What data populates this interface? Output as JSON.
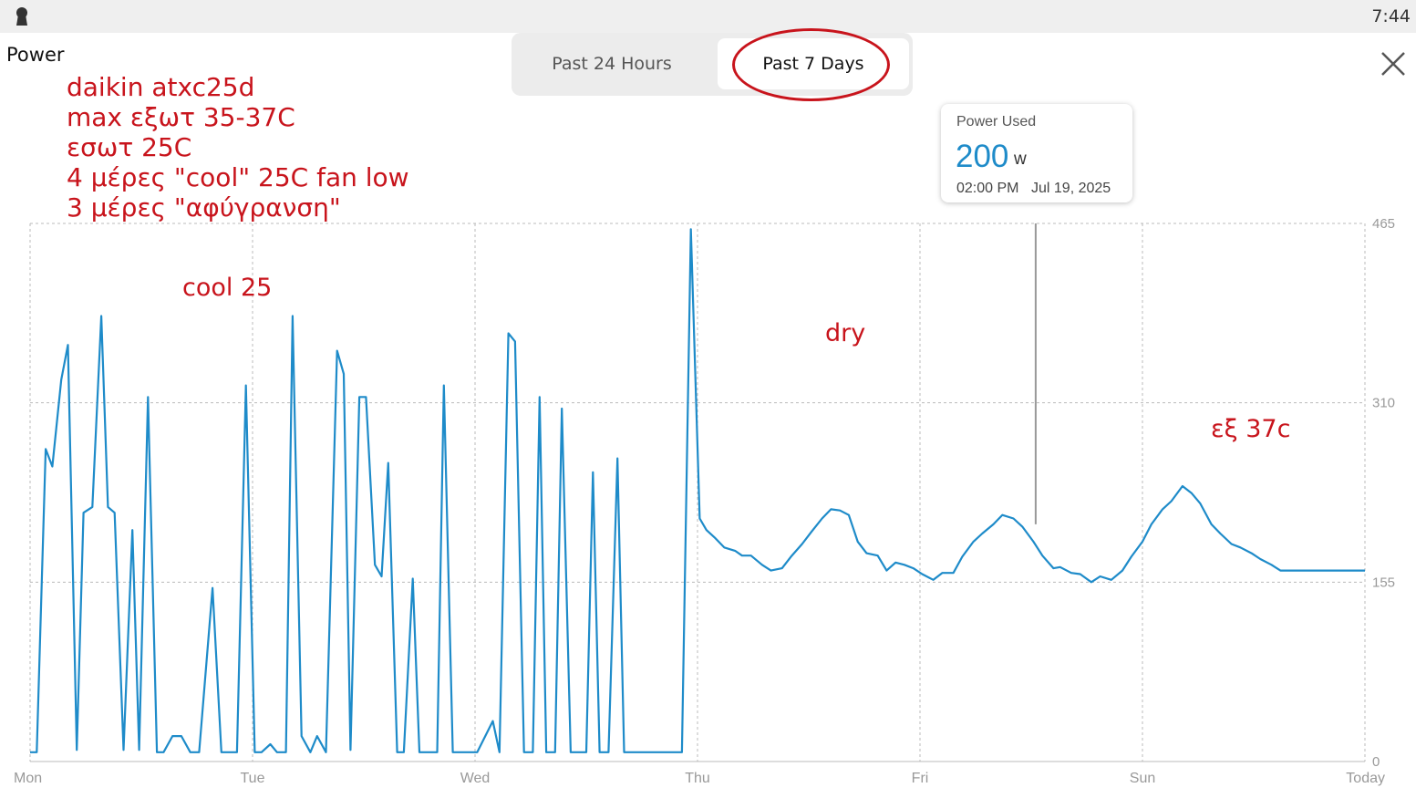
{
  "status_bar": {
    "time": "7:44",
    "icon": "keyhole-icon"
  },
  "header": {
    "title": "Power"
  },
  "tabs": [
    {
      "label": "Past 24 Hours",
      "selected": false
    },
    {
      "label": "Past 7 Days",
      "selected": true
    }
  ],
  "close_icon": "close-icon",
  "annotations": {
    "lines": [
      "daikin atxc25d",
      "max εξωτ 35-37C",
      "εσωτ 25C",
      "4 μέρες \"cool\" 25C fan low",
      "3 μέρες \"αφύγρανση\""
    ],
    "cool_label": "cool 25",
    "dry_label": "dry",
    "temp_label": "εξ 37c"
  },
  "tooltip": {
    "title": "Power Used",
    "value": "200",
    "unit": "w",
    "time": "02:00 PM",
    "date": "Jul 19, 2025"
  },
  "colors": {
    "line": "#1e8bc9",
    "annotation": "#c8141c",
    "grid": "#bbbbbb"
  },
  "chart_data": {
    "type": "line",
    "x_labels": [
      "Mon",
      "Tue",
      "Wed",
      "Thu",
      "Fri",
      "Sun",
      "Today"
    ],
    "x_label_days": [
      0,
      1,
      2,
      3,
      4,
      5,
      6
    ],
    "y_ticks": [
      "465",
      "310",
      "155",
      "0"
    ],
    "y_tick_values": [
      465,
      310,
      155,
      0
    ],
    "ylim": [
      0,
      465
    ],
    "xlim": [
      0,
      6
    ],
    "grid": true,
    "cursor_day": 4.52,
    "series": [
      {
        "values": [
          [
            0.0,
            8
          ],
          [
            0.03,
            8
          ],
          [
            0.07,
            270
          ],
          [
            0.1,
            255
          ],
          [
            0.14,
            330
          ],
          [
            0.17,
            360
          ],
          [
            0.21,
            10
          ],
          [
            0.24,
            215
          ],
          [
            0.28,
            220
          ],
          [
            0.32,
            385
          ],
          [
            0.35,
            220
          ],
          [
            0.38,
            215
          ],
          [
            0.42,
            10
          ],
          [
            0.46,
            200
          ],
          [
            0.49,
            10
          ],
          [
            0.53,
            315
          ],
          [
            0.57,
            8
          ],
          [
            0.6,
            8
          ],
          [
            0.64,
            22
          ],
          [
            0.68,
            22
          ],
          [
            0.72,
            8
          ],
          [
            0.76,
            8
          ],
          [
            0.82,
            150
          ],
          [
            0.86,
            8
          ],
          [
            0.9,
            8
          ],
          [
            0.93,
            8
          ],
          [
            0.97,
            325
          ],
          [
            1.01,
            8
          ],
          [
            1.04,
            8
          ],
          [
            1.08,
            15
          ],
          [
            1.11,
            8
          ],
          [
            1.15,
            8
          ],
          [
            1.18,
            385
          ],
          [
            1.22,
            22
          ],
          [
            1.26,
            8
          ],
          [
            1.29,
            22
          ],
          [
            1.33,
            8
          ],
          [
            1.38,
            355
          ],
          [
            1.41,
            335
          ],
          [
            1.44,
            10
          ],
          [
            1.48,
            315
          ],
          [
            1.51,
            315
          ],
          [
            1.55,
            170
          ],
          [
            1.58,
            160
          ],
          [
            1.61,
            258
          ],
          [
            1.65,
            8
          ],
          [
            1.68,
            8
          ],
          [
            1.72,
            158
          ],
          [
            1.75,
            8
          ],
          [
            1.79,
            8
          ],
          [
            1.83,
            8
          ],
          [
            1.86,
            325
          ],
          [
            1.9,
            8
          ],
          [
            1.93,
            8
          ],
          [
            2.01,
            8
          ],
          [
            2.08,
            35
          ],
          [
            2.11,
            8
          ],
          [
            2.15,
            370
          ],
          [
            2.18,
            363
          ],
          [
            2.22,
            8
          ],
          [
            2.26,
            8
          ],
          [
            2.29,
            315
          ],
          [
            2.32,
            8
          ],
          [
            2.36,
            8
          ],
          [
            2.39,
            305
          ],
          [
            2.43,
            8
          ],
          [
            2.46,
            8
          ],
          [
            2.5,
            8
          ],
          [
            2.53,
            250
          ],
          [
            2.56,
            8
          ],
          [
            2.6,
            8
          ],
          [
            2.64,
            262
          ],
          [
            2.67,
            8
          ],
          [
            2.7,
            8
          ],
          [
            2.85,
            8
          ],
          [
            2.93,
            8
          ],
          [
            2.97,
            460
          ],
          [
            3.01,
            210
          ],
          [
            3.04,
            200
          ],
          [
            3.08,
            193
          ],
          [
            3.12,
            185
          ],
          [
            3.17,
            182
          ],
          [
            3.2,
            178
          ],
          [
            3.24,
            178
          ],
          [
            3.29,
            170
          ],
          [
            3.33,
            165
          ],
          [
            3.38,
            167
          ],
          [
            3.42,
            177
          ],
          [
            3.47,
            188
          ],
          [
            3.51,
            198
          ],
          [
            3.56,
            210
          ],
          [
            3.6,
            218
          ],
          [
            3.64,
            217
          ],
          [
            3.68,
            213
          ],
          [
            3.72,
            190
          ],
          [
            3.76,
            180
          ],
          [
            3.81,
            178
          ],
          [
            3.85,
            165
          ],
          [
            3.89,
            172
          ],
          [
            3.93,
            170
          ],
          [
            3.97,
            167
          ],
          [
            4.01,
            162
          ],
          [
            4.06,
            157
          ],
          [
            4.1,
            163
          ],
          [
            4.15,
            163
          ],
          [
            4.19,
            177
          ],
          [
            4.24,
            190
          ],
          [
            4.28,
            197
          ],
          [
            4.33,
            205
          ],
          [
            4.37,
            213
          ],
          [
            4.42,
            210
          ],
          [
            4.46,
            203
          ],
          [
            4.51,
            190
          ],
          [
            4.55,
            178
          ],
          [
            4.6,
            167
          ],
          [
            4.63,
            168
          ],
          [
            4.68,
            163
          ],
          [
            4.72,
            162
          ],
          [
            4.77,
            155
          ],
          [
            4.81,
            160
          ],
          [
            4.86,
            157
          ],
          [
            4.91,
            165
          ],
          [
            4.95,
            177
          ],
          [
            5.0,
            190
          ],
          [
            5.04,
            205
          ],
          [
            5.09,
            218
          ],
          [
            5.13,
            225
          ],
          [
            5.18,
            238
          ],
          [
            5.22,
            232
          ],
          [
            5.26,
            223
          ],
          [
            5.31,
            205
          ],
          [
            5.35,
            197
          ],
          [
            5.4,
            188
          ],
          [
            5.44,
            185
          ],
          [
            5.49,
            180
          ],
          [
            5.53,
            175
          ],
          [
            5.58,
            170
          ],
          [
            5.62,
            165
          ],
          [
            5.66,
            165
          ],
          [
            6.0,
            165
          ]
        ]
      }
    ]
  }
}
